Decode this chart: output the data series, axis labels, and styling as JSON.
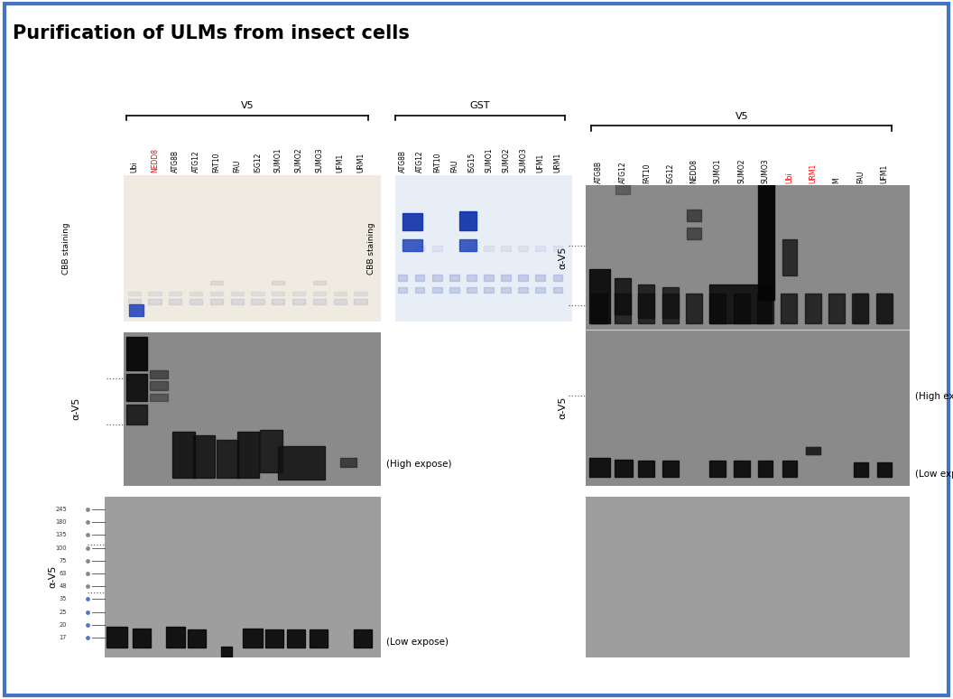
{
  "title": "Purification of ULMs from insect cells",
  "title_fontsize": 15,
  "title_fontweight": "bold",
  "title_color": "#000000",
  "bg_color": "#ffffff",
  "border_color": "#4472c4",
  "border_lw": 3,
  "panel_left_cbb_labels": [
    "Ubi",
    "NEDD8",
    "ATG8B",
    "ATG12",
    "FAT10",
    "FAU",
    "ISG12",
    "SUMO1",
    "SUMO2",
    "SUMO3",
    "UFM1",
    "URM1"
  ],
  "panel_mid_cbb_labels": [
    "ATG8B",
    "ATG12",
    "FAT10",
    "FAU",
    "ISG15",
    "SUMO1",
    "SUMO2",
    "SUMO3",
    "UFM1",
    "URM1"
  ],
  "panel_right_labels": [
    "ATG8B",
    "ATG12",
    "FAT10",
    "ISG12",
    "NEDD8",
    "SUMO1",
    "SUMO2",
    "SUMO3",
    "Ubi",
    "URM1",
    "M",
    "FAU",
    "UFM1"
  ],
  "panel_right_red_labels": [
    "Ubi",
    "URM1"
  ],
  "high_expose_text": "(High expose)",
  "low_expose_text": "(Low expose)",
  "ladder_labels": [
    "245",
    "180",
    "135",
    "100",
    "75",
    "63",
    "48",
    "35",
    "25",
    "20",
    "17"
  ],
  "panels": {
    "lp_cbb": [
      0.13,
      0.54,
      0.27,
      0.21
    ],
    "mp_cbb": [
      0.415,
      0.54,
      0.185,
      0.21
    ],
    "lp_wb_hi": [
      0.13,
      0.305,
      0.27,
      0.22
    ],
    "lp_wb_lo": [
      0.11,
      0.06,
      0.29,
      0.23
    ],
    "rp_wb_hi": [
      0.615,
      0.305,
      0.34,
      0.43
    ],
    "rp_wb_lo": [
      0.615,
      0.06,
      0.34,
      0.23
    ]
  },
  "cbb_left_bg": "#f0ebe0",
  "cbb_mid_bg": "#e8eef5",
  "wb_hi_bg": "#8a8a8a",
  "wb_lo_bg": "#9e9e9e",
  "wb_right_bg": "#8a8a8a",
  "wb_right_lo_bg": "#9e9e9e"
}
